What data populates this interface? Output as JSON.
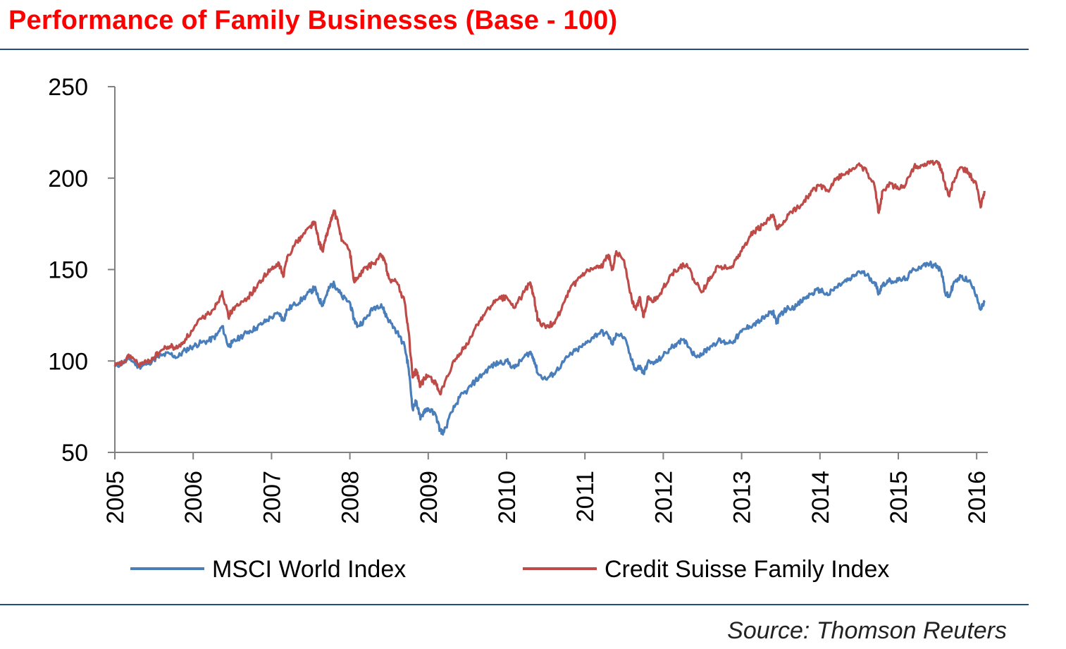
{
  "header": {
    "title": "Performance of Family Businesses (Base - 100)"
  },
  "footer": {
    "source": "Source: Thomson Reuters"
  },
  "colors": {
    "title": "#ff0000",
    "rule": "#1f4e79",
    "axis": "#808080",
    "msci": "#4a7ebb",
    "credit_suisse": "#be4b48"
  },
  "chart_data": {
    "type": "line",
    "title": "Performance of Family Businesses (Base - 100)",
    "xlabel": "",
    "ylabel": "",
    "xlim": [
      2005,
      2016.1
    ],
    "ylim": [
      50,
      250
    ],
    "yticks": [
      50,
      100,
      150,
      200,
      250
    ],
    "xticks": [
      "2005",
      "2006",
      "2007",
      "2008",
      "2009",
      "2010",
      "2011",
      "2012",
      "2013",
      "2014",
      "2015",
      "2016"
    ],
    "grid": false,
    "legend_position": "bottom",
    "series": [
      {
        "name": "MSCI World Index",
        "color": "#4a7ebb",
        "points": [
          [
            2005.0,
            97
          ],
          [
            2005.1,
            99
          ],
          [
            2005.2,
            101
          ],
          [
            2005.3,
            97
          ],
          [
            2005.4,
            98
          ],
          [
            2005.5,
            101
          ],
          [
            2005.6,
            103
          ],
          [
            2005.7,
            104
          ],
          [
            2005.8,
            102
          ],
          [
            2005.9,
            106
          ],
          [
            2006.0,
            108
          ],
          [
            2006.1,
            110
          ],
          [
            2006.2,
            111
          ],
          [
            2006.3,
            114
          ],
          [
            2006.37,
            119
          ],
          [
            2006.45,
            108
          ],
          [
            2006.5,
            110
          ],
          [
            2006.6,
            113
          ],
          [
            2006.7,
            116
          ],
          [
            2006.8,
            118
          ],
          [
            2006.9,
            121
          ],
          [
            2007.0,
            124
          ],
          [
            2007.1,
            126
          ],
          [
            2007.15,
            122
          ],
          [
            2007.2,
            128
          ],
          [
            2007.3,
            131
          ],
          [
            2007.4,
            134
          ],
          [
            2007.5,
            138
          ],
          [
            2007.55,
            140
          ],
          [
            2007.6,
            134
          ],
          [
            2007.65,
            131
          ],
          [
            2007.7,
            136
          ],
          [
            2007.75,
            141
          ],
          [
            2007.8,
            142
          ],
          [
            2007.85,
            139
          ],
          [
            2007.9,
            135
          ],
          [
            2008.0,
            132
          ],
          [
            2008.05,
            123
          ],
          [
            2008.1,
            119
          ],
          [
            2008.2,
            123
          ],
          [
            2008.3,
            129
          ],
          [
            2008.4,
            131
          ],
          [
            2008.45,
            126
          ],
          [
            2008.5,
            122
          ],
          [
            2008.6,
            116
          ],
          [
            2008.7,
            108
          ],
          [
            2008.75,
            96
          ],
          [
            2008.8,
            74
          ],
          [
            2008.85,
            78
          ],
          [
            2008.9,
            68
          ],
          [
            2008.95,
            73
          ],
          [
            2009.0,
            74
          ],
          [
            2009.1,
            70
          ],
          [
            2009.15,
            62
          ],
          [
            2009.2,
            61
          ],
          [
            2009.3,
            72
          ],
          [
            2009.4,
            80
          ],
          [
            2009.5,
            84
          ],
          [
            2009.6,
            89
          ],
          [
            2009.7,
            93
          ],
          [
            2009.8,
            97
          ],
          [
            2009.9,
            99
          ],
          [
            2010.0,
            100
          ],
          [
            2010.1,
            96
          ],
          [
            2010.2,
            101
          ],
          [
            2010.3,
            105
          ],
          [
            2010.35,
            101
          ],
          [
            2010.4,
            93
          ],
          [
            2010.5,
            90
          ],
          [
            2010.6,
            93
          ],
          [
            2010.7,
            98
          ],
          [
            2010.8,
            103
          ],
          [
            2010.9,
            106
          ],
          [
            2011.0,
            109
          ],
          [
            2011.1,
            113
          ],
          [
            2011.2,
            116
          ],
          [
            2011.3,
            114
          ],
          [
            2011.35,
            109
          ],
          [
            2011.4,
            115
          ],
          [
            2011.5,
            113
          ],
          [
            2011.6,
            100
          ],
          [
            2011.65,
            95
          ],
          [
            2011.7,
            97
          ],
          [
            2011.75,
            93
          ],
          [
            2011.8,
            99
          ],
          [
            2011.9,
            99
          ],
          [
            2012.0,
            103
          ],
          [
            2012.1,
            107
          ],
          [
            2012.2,
            111
          ],
          [
            2012.3,
            110
          ],
          [
            2012.4,
            103
          ],
          [
            2012.5,
            104
          ],
          [
            2012.6,
            108
          ],
          [
            2012.7,
            111
          ],
          [
            2012.8,
            110
          ],
          [
            2012.9,
            111
          ],
          [
            2013.0,
            116
          ],
          [
            2013.1,
            119
          ],
          [
            2013.2,
            121
          ],
          [
            2013.3,
            124
          ],
          [
            2013.4,
            127
          ],
          [
            2013.45,
            121
          ],
          [
            2013.5,
            126
          ],
          [
            2013.6,
            129
          ],
          [
            2013.7,
            130
          ],
          [
            2013.8,
            134
          ],
          [
            2013.9,
            137
          ],
          [
            2014.0,
            139
          ],
          [
            2014.1,
            136
          ],
          [
            2014.2,
            140
          ],
          [
            2014.3,
            143
          ],
          [
            2014.4,
            145
          ],
          [
            2014.5,
            149
          ],
          [
            2014.6,
            147
          ],
          [
            2014.7,
            143
          ],
          [
            2014.75,
            137
          ],
          [
            2014.8,
            142
          ],
          [
            2014.9,
            144
          ],
          [
            2015.0,
            144
          ],
          [
            2015.1,
            145
          ],
          [
            2015.2,
            150
          ],
          [
            2015.3,
            152
          ],
          [
            2015.4,
            153
          ],
          [
            2015.5,
            152
          ],
          [
            2015.55,
            149
          ],
          [
            2015.6,
            137
          ],
          [
            2015.65,
            135
          ],
          [
            2015.7,
            142
          ],
          [
            2015.8,
            146
          ],
          [
            2015.9,
            144
          ],
          [
            2016.0,
            136
          ],
          [
            2016.05,
            128
          ],
          [
            2016.1,
            132
          ]
        ]
      },
      {
        "name": "Credit Suisse Family Index",
        "color": "#be4b48",
        "points": [
          [
            2005.0,
            97
          ],
          [
            2005.1,
            99
          ],
          [
            2005.2,
            103
          ],
          [
            2005.3,
            98
          ],
          [
            2005.4,
            99
          ],
          [
            2005.5,
            102
          ],
          [
            2005.6,
            106
          ],
          [
            2005.7,
            108
          ],
          [
            2005.8,
            107
          ],
          [
            2005.9,
            112
          ],
          [
            2006.0,
            117
          ],
          [
            2006.1,
            123
          ],
          [
            2006.2,
            126
          ],
          [
            2006.3,
            131
          ],
          [
            2006.37,
            138
          ],
          [
            2006.45,
            124
          ],
          [
            2006.5,
            128
          ],
          [
            2006.6,
            131
          ],
          [
            2006.7,
            135
          ],
          [
            2006.8,
            140
          ],
          [
            2006.9,
            146
          ],
          [
            2007.0,
            150
          ],
          [
            2007.1,
            153
          ],
          [
            2007.15,
            146
          ],
          [
            2007.2,
            157
          ],
          [
            2007.3,
            164
          ],
          [
            2007.4,
            169
          ],
          [
            2007.5,
            174
          ],
          [
            2007.55,
            176
          ],
          [
            2007.6,
            166
          ],
          [
            2007.65,
            160
          ],
          [
            2007.7,
            168
          ],
          [
            2007.75,
            176
          ],
          [
            2007.8,
            182
          ],
          [
            2007.85,
            175
          ],
          [
            2007.9,
            166
          ],
          [
            2008.0,
            160
          ],
          [
            2008.05,
            144
          ],
          [
            2008.1,
            145
          ],
          [
            2008.2,
            151
          ],
          [
            2008.3,
            153
          ],
          [
            2008.4,
            158
          ],
          [
            2008.45,
            154
          ],
          [
            2008.5,
            145
          ],
          [
            2008.6,
            143
          ],
          [
            2008.7,
            132
          ],
          [
            2008.75,
            116
          ],
          [
            2008.8,
            91
          ],
          [
            2008.85,
            95
          ],
          [
            2008.9,
            86
          ],
          [
            2008.95,
            90
          ],
          [
            2009.0,
            92
          ],
          [
            2009.1,
            88
          ],
          [
            2009.15,
            82
          ],
          [
            2009.2,
            86
          ],
          [
            2009.3,
            97
          ],
          [
            2009.4,
            104
          ],
          [
            2009.5,
            109
          ],
          [
            2009.6,
            118
          ],
          [
            2009.7,
            125
          ],
          [
            2009.8,
            130
          ],
          [
            2009.9,
            134
          ],
          [
            2010.0,
            135
          ],
          [
            2010.1,
            129
          ],
          [
            2010.2,
            136
          ],
          [
            2010.3,
            143
          ],
          [
            2010.35,
            135
          ],
          [
            2010.4,
            122
          ],
          [
            2010.5,
            118
          ],
          [
            2010.6,
            121
          ],
          [
            2010.7,
            128
          ],
          [
            2010.8,
            138
          ],
          [
            2010.9,
            144
          ],
          [
            2011.0,
            148
          ],
          [
            2011.1,
            150
          ],
          [
            2011.2,
            151
          ],
          [
            2011.3,
            158
          ],
          [
            2011.35,
            150
          ],
          [
            2011.4,
            160
          ],
          [
            2011.5,
            155
          ],
          [
            2011.6,
            133
          ],
          [
            2011.65,
            128
          ],
          [
            2011.7,
            135
          ],
          [
            2011.75,
            124
          ],
          [
            2011.8,
            135
          ],
          [
            2011.9,
            133
          ],
          [
            2012.0,
            140
          ],
          [
            2012.1,
            147
          ],
          [
            2012.2,
            151
          ],
          [
            2012.3,
            153
          ],
          [
            2012.4,
            143
          ],
          [
            2012.5,
            138
          ],
          [
            2012.6,
            146
          ],
          [
            2012.7,
            152
          ],
          [
            2012.8,
            151
          ],
          [
            2012.9,
            153
          ],
          [
            2013.0,
            160
          ],
          [
            2013.1,
            168
          ],
          [
            2013.2,
            172
          ],
          [
            2013.3,
            175
          ],
          [
            2013.4,
            180
          ],
          [
            2013.45,
            172
          ],
          [
            2013.5,
            174
          ],
          [
            2013.6,
            180
          ],
          [
            2013.7,
            183
          ],
          [
            2013.8,
            188
          ],
          [
            2013.9,
            193
          ],
          [
            2014.0,
            196
          ],
          [
            2014.1,
            193
          ],
          [
            2014.2,
            199
          ],
          [
            2014.3,
            202
          ],
          [
            2014.4,
            204
          ],
          [
            2014.5,
            208
          ],
          [
            2014.6,
            203
          ],
          [
            2014.7,
            195
          ],
          [
            2014.75,
            181
          ],
          [
            2014.8,
            193
          ],
          [
            2014.9,
            197
          ],
          [
            2015.0,
            194
          ],
          [
            2015.1,
            197
          ],
          [
            2015.2,
            206
          ],
          [
            2015.3,
            207
          ],
          [
            2015.4,
            208
          ],
          [
            2015.5,
            209
          ],
          [
            2015.55,
            205
          ],
          [
            2015.6,
            196
          ],
          [
            2015.65,
            190
          ],
          [
            2015.7,
            198
          ],
          [
            2015.8,
            206
          ],
          [
            2015.9,
            203
          ],
          [
            2016.0,
            196
          ],
          [
            2016.05,
            184
          ],
          [
            2016.1,
            193
          ]
        ]
      }
    ]
  }
}
